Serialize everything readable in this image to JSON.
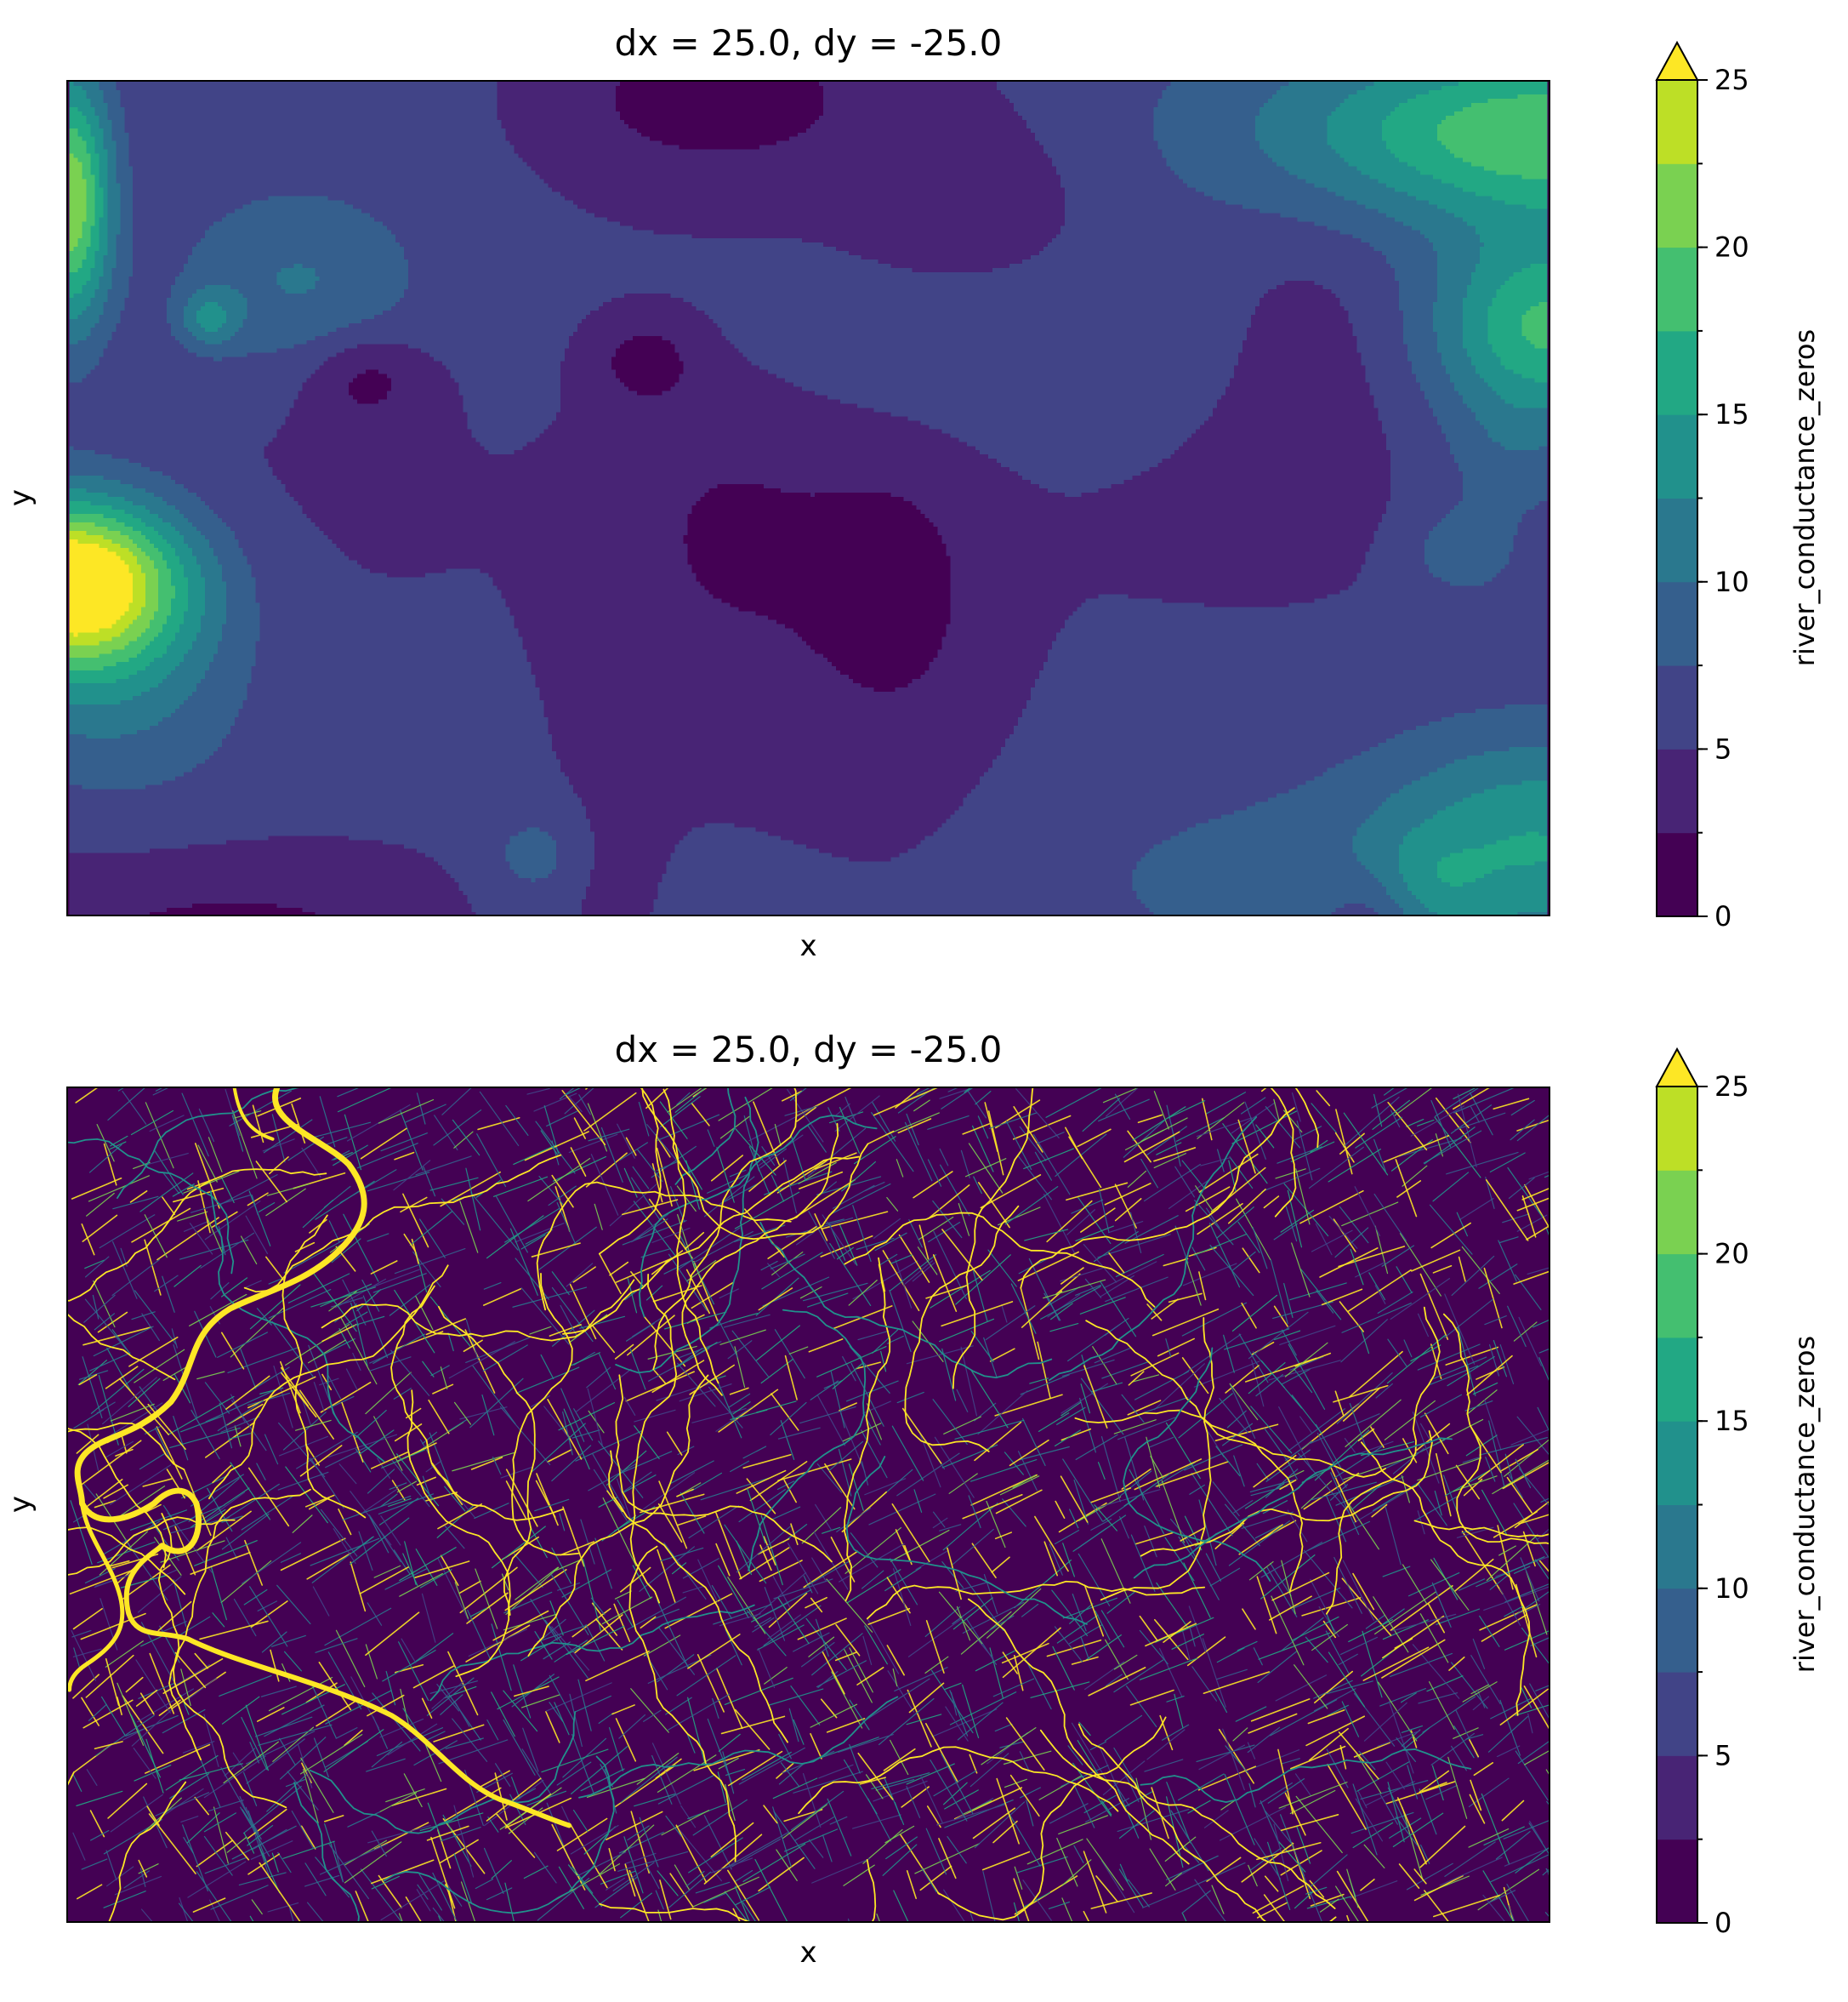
{
  "chart_data": [
    {
      "type": "heatmap",
      "title": "dx = 25.0, dy = -25.0",
      "xlabel": "x",
      "ylabel": "y",
      "colorbar": {
        "label": "river_conductance_zeros",
        "ticks": [
          "0",
          "5",
          "10",
          "15",
          "20",
          "25"
        ],
        "levels": [
          0,
          2.5,
          5,
          7.5,
          10,
          12.5,
          15,
          17.5,
          20,
          22.5,
          25
        ],
        "extend": "max",
        "range": [
          0,
          25
        ]
      },
      "style": "filled contours (smooth field)",
      "colormap": [
        "#440154",
        "#482475",
        "#414487",
        "#355f8d",
        "#2a788e",
        "#21918c",
        "#22a884",
        "#44bf70",
        "#7ad151",
        "#bddf26",
        "#fde725"
      ],
      "features": [
        {
          "level": 22.5,
          "location": "left edge, middle",
          "shape": "peak"
        },
        {
          "level": 20,
          "location": "left edge, upper",
          "shape": "ridge"
        },
        {
          "level": 15,
          "location": "right edge, upper",
          "shape": "ridge"
        },
        {
          "level": 12.5,
          "location": "top-right corner",
          "shape": "ridge"
        },
        {
          "level": 10,
          "location": "bottom-right corner",
          "shape": "ridge"
        }
      ]
    },
    {
      "type": "heatmap",
      "title": "dx = 25.0, dy = -25.0",
      "xlabel": "x",
      "ylabel": "y",
      "colorbar": {
        "label": "river_conductance_zeros",
        "ticks": [
          "0",
          "5",
          "10",
          "15",
          "20",
          "25"
        ],
        "levels": [
          0,
          2.5,
          5,
          7.5,
          10,
          12.5,
          15,
          17.5,
          20,
          22.5,
          25
        ],
        "extend": "max",
        "range": [
          0,
          25
        ]
      },
      "style": "raster (dense river network on zero background)",
      "background_value": 0,
      "main_river_value": ">25",
      "colormap": [
        "#440154",
        "#482475",
        "#414487",
        "#355f8d",
        "#2a788e",
        "#21918c",
        "#22a884",
        "#44bf70",
        "#7ad151",
        "#bddf26",
        "#fde725"
      ]
    }
  ]
}
